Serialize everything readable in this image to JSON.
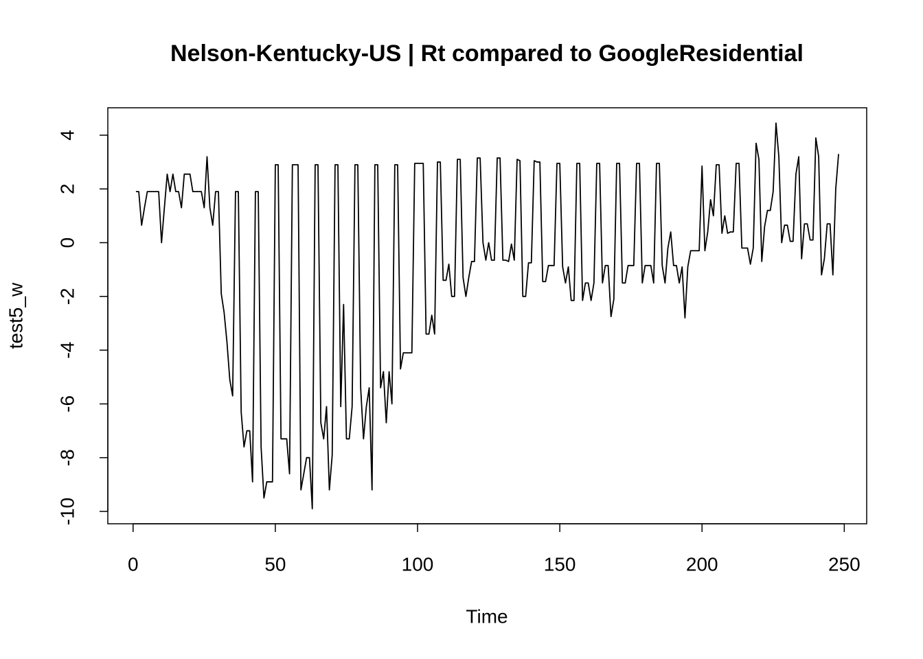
{
  "chart_data": {
    "type": "line",
    "title": "Nelson-Kentucky-US | Rt compared to GoogleResidential",
    "xlabel": "Time",
    "ylabel": "test5_w",
    "x": [
      1,
      2,
      3,
      4,
      5,
      6,
      7,
      8,
      9,
      10,
      11,
      12,
      13,
      14,
      15,
      16,
      17,
      18,
      19,
      20,
      21,
      22,
      23,
      24,
      25,
      26,
      27,
      28,
      29,
      30,
      31,
      32,
      33,
      34,
      35,
      36,
      37,
      38,
      39,
      40,
      41,
      42,
      43,
      44,
      45,
      46,
      47,
      48,
      49,
      50,
      51,
      52,
      53,
      54,
      55,
      56,
      57,
      58,
      59,
      60,
      61,
      62,
      63,
      64,
      65,
      66,
      67,
      68,
      69,
      70,
      71,
      72,
      73,
      74,
      75,
      76,
      77,
      78,
      79,
      80,
      81,
      82,
      83,
      84,
      85,
      86,
      87,
      88,
      89,
      90,
      91,
      92,
      93,
      94,
      95,
      96,
      97,
      98,
      99,
      100,
      101,
      102,
      103,
      104,
      105,
      106,
      107,
      108,
      109,
      110,
      111,
      112,
      113,
      114,
      115,
      116,
      117,
      118,
      119,
      120,
      121,
      122,
      123,
      124,
      125,
      126,
      127,
      128,
      129,
      130,
      131,
      132,
      133,
      134,
      135,
      136,
      137,
      138,
      139,
      140,
      141,
      142,
      143,
      144,
      145,
      146,
      147,
      148,
      149,
      150,
      151,
      152,
      153,
      154,
      155,
      156,
      157,
      158,
      159,
      160,
      161,
      162,
      163,
      164,
      165,
      166,
      167,
      168,
      169,
      170,
      171,
      172,
      173,
      174,
      175,
      176,
      177,
      178,
      179,
      180,
      181,
      182,
      183,
      184,
      185,
      186,
      187,
      188,
      189,
      190,
      191,
      192,
      193,
      194,
      195,
      196,
      197,
      198,
      199,
      200,
      201,
      202,
      203,
      204,
      205,
      206,
      207,
      208,
      209,
      210,
      211,
      212,
      213,
      214,
      215,
      216,
      217,
      218,
      219,
      220,
      221,
      222,
      223,
      224,
      225,
      226,
      227,
      228,
      229,
      230,
      231,
      232,
      233,
      234,
      235,
      236,
      237,
      238,
      239,
      240,
      241,
      242,
      243,
      244,
      245,
      246,
      247,
      248
    ],
    "values": [
      1.9,
      1.9,
      0.65,
      1.3,
      1.9,
      1.9,
      1.9,
      1.9,
      1.9,
      0.0,
      1.3,
      2.55,
      1.9,
      2.55,
      1.9,
      1.9,
      1.3,
      2.55,
      2.55,
      2.55,
      1.9,
      1.9,
      1.9,
      1.9,
      1.3,
      3.2,
      1.3,
      0.65,
      1.9,
      1.9,
      -1.9,
      -2.6,
      -3.7,
      -5.1,
      -5.7,
      1.9,
      1.9,
      -6.3,
      -7.6,
      -7.0,
      -7.0,
      -8.9,
      1.9,
      1.9,
      -7.6,
      -9.5,
      -8.9,
      -8.9,
      -8.9,
      2.9,
      2.9,
      -7.3,
      -7.3,
      -7.3,
      -8.6,
      2.9,
      2.9,
      2.9,
      -9.2,
      -8.6,
      -8.0,
      -8.0,
      -9.9,
      2.9,
      2.9,
      -6.7,
      -7.3,
      -6.1,
      -9.2,
      -7.9,
      2.9,
      2.9,
      -6.1,
      -2.3,
      -7.3,
      -7.3,
      -6.1,
      2.9,
      2.9,
      -5.4,
      -7.3,
      -6.1,
      -5.4,
      -9.2,
      2.9,
      2.9,
      -5.4,
      -4.8,
      -6.7,
      -4.8,
      -6.0,
      2.9,
      2.9,
      -4.7,
      -4.1,
      -4.1,
      -4.1,
      -4.1,
      2.95,
      2.95,
      2.95,
      2.95,
      -3.4,
      -3.4,
      -2.7,
      -3.4,
      3.0,
      3.0,
      -1.4,
      -1.4,
      -0.8,
      -2.0,
      -2.0,
      3.1,
      3.1,
      -1.3,
      -2.0,
      -1.3,
      -0.7,
      -0.7,
      3.15,
      3.15,
      0.0,
      -0.65,
      0.0,
      -0.65,
      -0.65,
      3.15,
      3.15,
      -0.65,
      -0.65,
      -0.7,
      -0.05,
      -0.65,
      3.1,
      3.05,
      -2.0,
      -2.0,
      -0.75,
      -0.75,
      3.05,
      3.0,
      3.0,
      -1.45,
      -1.45,
      -0.85,
      -0.85,
      -0.85,
      2.95,
      2.95,
      -0.9,
      -1.5,
      -0.9,
      -2.15,
      -2.15,
      2.95,
      2.95,
      -2.15,
      -1.5,
      -1.5,
      -2.15,
      -1.5,
      2.95,
      2.95,
      -1.5,
      -0.85,
      -0.85,
      -2.75,
      -2.1,
      2.95,
      2.95,
      -1.5,
      -1.5,
      -0.85,
      -0.85,
      -0.85,
      2.95,
      2.95,
      -1.5,
      -0.85,
      -0.85,
      -0.85,
      -1.5,
      2.95,
      2.95,
      -0.85,
      -1.5,
      -0.2,
      0.4,
      -0.85,
      -0.85,
      -1.5,
      -0.9,
      -2.8,
      -0.9,
      -0.3,
      -0.3,
      -0.3,
      -0.3,
      2.85,
      -0.3,
      0.4,
      1.6,
      1.0,
      2.9,
      2.9,
      0.35,
      1.0,
      0.35,
      0.4,
      0.4,
      2.95,
      2.95,
      -0.2,
      -0.2,
      -0.2,
      -0.8,
      -0.2,
      3.7,
      3.1,
      -0.7,
      0.6,
      1.2,
      1.2,
      1.9,
      4.45,
      3.2,
      0.0,
      0.65,
      0.65,
      0.05,
      0.05,
      2.55,
      3.2,
      -0.6,
      0.7,
      0.7,
      0.1,
      0.1,
      3.9,
      3.2,
      -1.2,
      -0.6,
      0.7,
      0.7,
      -1.2,
      2.0,
      3.3
    ],
    "color": "#000000",
    "xlim": [
      -8.88,
      257.88
    ],
    "xticks": [
      0,
      50,
      100,
      150,
      200,
      250
    ],
    "ylim": [
      -10.46,
      5.02
    ],
    "yticks": [
      -10,
      -8,
      -6,
      -4,
      -2,
      0,
      2,
      4
    ]
  }
}
